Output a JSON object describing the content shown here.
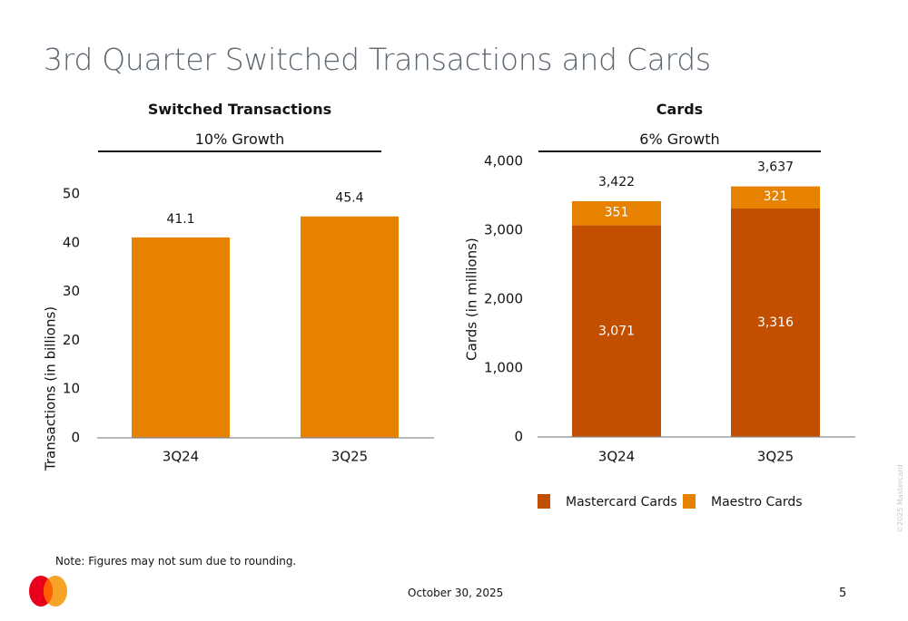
{
  "page": {
    "title": "3rd Quarter Switched Transactions and Cards",
    "note": "Note: Figures may not sum due to rounding.",
    "date": "October 30, 2025",
    "page_number": "5",
    "copyright": "©2025 Mastercard",
    "logo": "mastercard-logo"
  },
  "colors": {
    "orange": "#E68200",
    "dark_orange": "#C24E00",
    "title_gray": "#5B6670",
    "text": "#141413",
    "axis": "#8c8c8c"
  },
  "chart_data": [
    {
      "type": "bar",
      "title": "Switched Transactions",
      "subtitle": "10% Growth",
      "xlabel": "",
      "ylabel": "Transactions (in billions)",
      "categories": [
        "3Q24",
        "3Q25"
      ],
      "values": [
        41.1,
        45.4
      ],
      "value_labels": [
        "41.1",
        "45.4"
      ],
      "ylim": [
        0,
        50
      ],
      "yticks": [
        0,
        10,
        20,
        30,
        40,
        50
      ],
      "ytick_labels": [
        "0",
        "10",
        "20",
        "30",
        "40",
        "50"
      ],
      "grid": false
    },
    {
      "type": "bar",
      "stacked": true,
      "title": "Cards",
      "subtitle": "6% Growth",
      "xlabel": "",
      "ylabel": "Cards (in millions)",
      "categories": [
        "3Q24",
        "3Q25"
      ],
      "series": [
        {
          "name": "Mastercard Cards",
          "values": [
            3071,
            3316
          ],
          "labels": [
            "3,071",
            "3,316"
          ]
        },
        {
          "name": "Maestro Cards",
          "values": [
            351,
            321
          ],
          "labels": [
            "351",
            "321"
          ]
        }
      ],
      "totals": [
        3422,
        3637
      ],
      "total_labels": [
        "3,422",
        "3,637"
      ],
      "ylim": [
        0,
        4000
      ],
      "yticks": [
        0,
        1000,
        2000,
        3000,
        4000
      ],
      "ytick_labels": [
        "0",
        "1,000",
        "2,000",
        "3,000",
        "4,000"
      ],
      "legend": [
        "Mastercard Cards",
        "Maestro Cards"
      ],
      "legend_position": "bottom",
      "grid": false
    }
  ]
}
